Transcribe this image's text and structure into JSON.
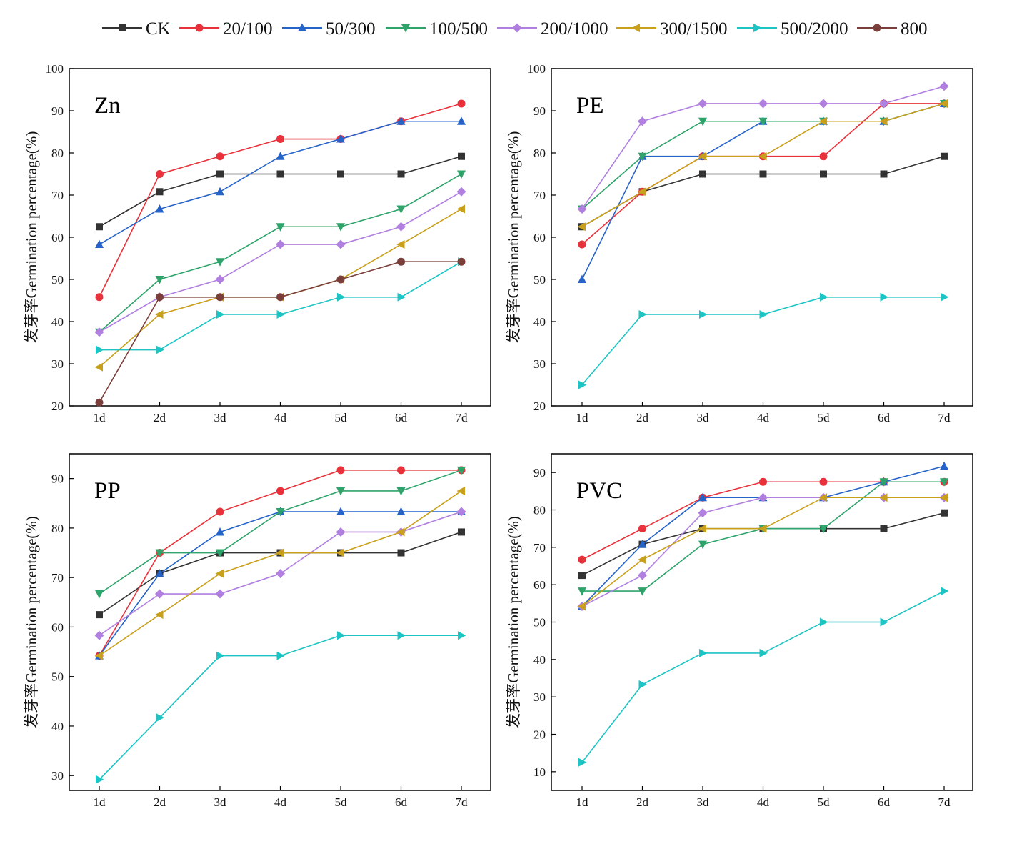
{
  "legend": [
    {
      "name": "CK",
      "color": "#333333",
      "marker": "square"
    },
    {
      "name": "20/100",
      "color": "#e8313a",
      "marker": "circle"
    },
    {
      "name": "50/300",
      "color": "#2563c9",
      "marker": "triangle-up"
    },
    {
      "name": "100/500",
      "color": "#2ea36a",
      "marker": "triangle-down"
    },
    {
      "name": "200/1000",
      "color": "#b07fe0",
      "marker": "diamond"
    },
    {
      "name": "300/1500",
      "color": "#c9a01b",
      "marker": "triangle-left"
    },
    {
      "name": "500/2000",
      "color": "#1cc4c4",
      "marker": "triangle-right"
    },
    {
      "name": "800",
      "color": "#7a3f3a",
      "marker": "circle"
    }
  ],
  "chart_data": [
    {
      "type": "line",
      "title": "Zn",
      "ylabel": "发芽率Germination percentage(%)",
      "categories": [
        "1d",
        "2d",
        "3d",
        "4d",
        "5d",
        "6d",
        "7d"
      ],
      "ylim": [
        20,
        100
      ],
      "yticks": [
        20,
        30,
        40,
        50,
        60,
        70,
        80,
        90,
        100
      ],
      "series": [
        {
          "name": "CK",
          "values": [
            62.5,
            70.8,
            75,
            75,
            75,
            75,
            79.2
          ]
        },
        {
          "name": "20/100",
          "values": [
            45.8,
            75,
            79.2,
            83.3,
            83.3,
            87.5,
            91.7
          ]
        },
        {
          "name": "50/300",
          "values": [
            58.3,
            66.7,
            70.8,
            79.2,
            83.3,
            87.5,
            87.5
          ]
        },
        {
          "name": "100/500",
          "values": [
            37.5,
            50,
            54.2,
            62.5,
            62.5,
            66.7,
            75
          ]
        },
        {
          "name": "200/1000",
          "values": [
            37.5,
            45.8,
            50,
            58.3,
            58.3,
            62.5,
            70.8
          ]
        },
        {
          "name": "300/1500",
          "values": [
            29.2,
            41.7,
            45.8,
            45.8,
            50,
            58.3,
            66.7
          ]
        },
        {
          "name": "500/2000",
          "values": [
            33.3,
            33.3,
            41.7,
            41.7,
            45.8,
            45.8,
            54.2
          ]
        },
        {
          "name": "800",
          "values": [
            20.8,
            45.8,
            45.8,
            45.8,
            50,
            54.2,
            54.2
          ]
        }
      ]
    },
    {
      "type": "line",
      "title": "PE",
      "ylabel": "发芽率Germination percentage(%)",
      "categories": [
        "1d",
        "2d",
        "3d",
        "4d",
        "5d",
        "6d",
        "7d"
      ],
      "ylim": [
        20,
        100
      ],
      "yticks": [
        20,
        30,
        40,
        50,
        60,
        70,
        80,
        90,
        100
      ],
      "series": [
        {
          "name": "CK",
          "values": [
            62.5,
            70.8,
            75,
            75,
            75,
            75,
            79.2
          ]
        },
        {
          "name": "20/100",
          "values": [
            58.3,
            70.8,
            79.2,
            79.2,
            79.2,
            91.7,
            91.7
          ]
        },
        {
          "name": "50/300",
          "values": [
            50,
            79.2,
            79.2,
            87.5,
            87.5,
            87.5,
            91.7
          ]
        },
        {
          "name": "100/500",
          "values": [
            66.7,
            79.2,
            87.5,
            87.5,
            87.5,
            87.5,
            91.7
          ]
        },
        {
          "name": "200/1000",
          "values": [
            66.7,
            87.5,
            91.7,
            91.7,
            91.7,
            91.7,
            95.8
          ]
        },
        {
          "name": "300/1500",
          "values": [
            62.5,
            70.8,
            79.2,
            79.2,
            87.5,
            87.5,
            91.7
          ]
        },
        {
          "name": "500/2000",
          "values": [
            25,
            41.7,
            41.7,
            41.7,
            45.8,
            45.8,
            45.8
          ]
        }
      ]
    },
    {
      "type": "line",
      "title": "PP",
      "ylabel": "发芽率Germination percentage(%)",
      "categories": [
        "1d",
        "2d",
        "3d",
        "4d",
        "5d",
        "6d",
        "7d"
      ],
      "ylim": [
        27,
        95
      ],
      "yticks": [
        30,
        40,
        50,
        60,
        70,
        80,
        90
      ],
      "series": [
        {
          "name": "CK",
          "values": [
            62.5,
            70.8,
            75,
            75,
            75,
            75,
            79.2
          ]
        },
        {
          "name": "20/100",
          "values": [
            54.2,
            75,
            83.3,
            87.5,
            91.7,
            91.7,
            91.7
          ]
        },
        {
          "name": "50/300",
          "values": [
            54.2,
            70.8,
            79.2,
            83.3,
            83.3,
            83.3,
            83.3
          ]
        },
        {
          "name": "100/500",
          "values": [
            66.7,
            75,
            75,
            83.3,
            87.5,
            87.5,
            91.7
          ]
        },
        {
          "name": "200/1000",
          "values": [
            58.3,
            66.7,
            66.7,
            70.8,
            79.2,
            79.2,
            83.3
          ]
        },
        {
          "name": "300/1500",
          "values": [
            54.2,
            62.5,
            70.8,
            75,
            75,
            79.2,
            87.5
          ]
        },
        {
          "name": "500/2000",
          "values": [
            29.2,
            41.7,
            54.2,
            54.2,
            58.3,
            58.3,
            58.3
          ]
        }
      ]
    },
    {
      "type": "line",
      "title": "PVC",
      "ylabel": "发芽率Germination percentage(%)",
      "categories": [
        "1d",
        "2d",
        "3d",
        "4d",
        "5d",
        "6d",
        "7d"
      ],
      "ylim": [
        5,
        95
      ],
      "yticks": [
        10,
        20,
        30,
        40,
        50,
        60,
        70,
        80,
        90
      ],
      "series": [
        {
          "name": "CK",
          "values": [
            62.5,
            70.8,
            75,
            75,
            75,
            75,
            79.2
          ]
        },
        {
          "name": "20/100",
          "values": [
            66.7,
            75,
            83.3,
            87.5,
            87.5,
            87.5,
            87.5
          ]
        },
        {
          "name": "50/300",
          "values": [
            54.2,
            70.8,
            83.3,
            83.3,
            83.3,
            87.5,
            91.7
          ]
        },
        {
          "name": "100/500",
          "values": [
            58.3,
            58.3,
            70.8,
            75,
            75,
            87.5,
            87.5
          ]
        },
        {
          "name": "200/1000",
          "values": [
            54.2,
            62.5,
            79.2,
            83.3,
            83.3,
            83.3,
            83.3
          ]
        },
        {
          "name": "300/1500",
          "values": [
            54.2,
            66.7,
            75,
            75,
            83.3,
            83.3,
            83.3
          ]
        },
        {
          "name": "500/2000",
          "values": [
            12.5,
            33.3,
            41.7,
            41.7,
            50,
            50,
            58.3
          ]
        }
      ]
    }
  ]
}
